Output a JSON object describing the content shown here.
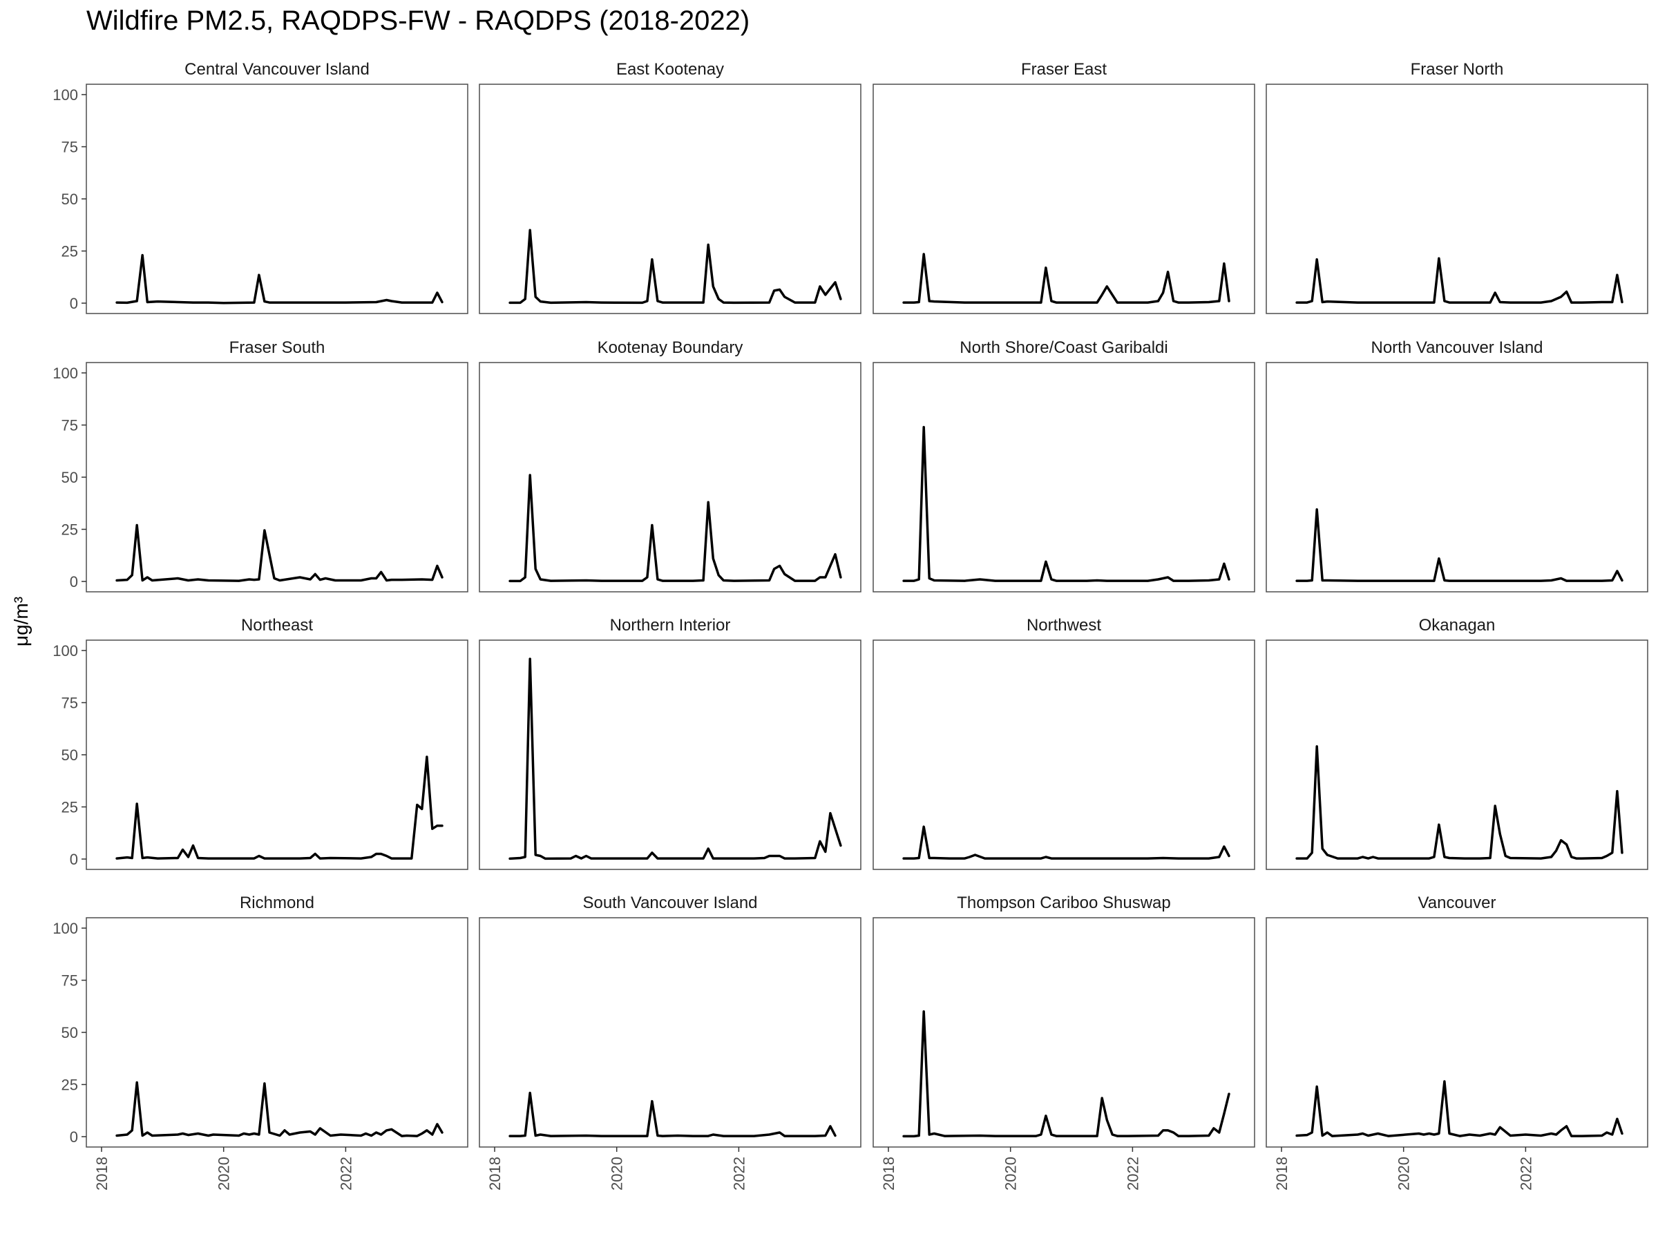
{
  "title": "Wildfire PM2.5, RAQDPS-FW - RAQDPS (2018-2022)",
  "chart_data": {
    "type": "line",
    "facet_layout": "4x4",
    "ylabel": "μg/m³",
    "xlabel": "",
    "ylim": [
      0,
      100
    ],
    "yticks": [
      0,
      25,
      50,
      75,
      100
    ],
    "xlim": [
      2018.0,
      2023.75
    ],
    "xticks": [
      2018,
      2020,
      2022
    ],
    "xtick_labels": [
      "2018",
      "2020",
      "2022"
    ],
    "line_color": "#000000",
    "grid": false,
    "panels": [
      {
        "name": "Central Vancouver Island",
        "x": [
          2018.25,
          2018.42,
          2018.58,
          2018.67,
          2018.75,
          2018.92,
          2019.5,
          2019.75,
          2020.0,
          2020.5,
          2020.58,
          2020.67,
          2020.75,
          2021.0,
          2021.5,
          2021.75,
          2022.0,
          2022.5,
          2022.67,
          2022.75,
          2022.92,
          2023.25,
          2023.42,
          2023.5,
          2023.58
        ],
        "y": [
          0.3,
          0.2,
          1,
          23,
          0.5,
          0.8,
          0.3,
          0.3,
          0.1,
          0.3,
          13.5,
          0.8,
          0.3,
          0.3,
          0.3,
          0.3,
          0.3,
          0.5,
          1.5,
          1,
          0.3,
          0.3,
          0.3,
          5,
          0.5
        ]
      },
      {
        "name": "East Kootenay",
        "x": [
          2018.25,
          2018.42,
          2018.5,
          2018.58,
          2018.67,
          2018.75,
          2018.92,
          2019.5,
          2019.75,
          2020.42,
          2020.5,
          2020.58,
          2020.67,
          2020.75,
          2021.0,
          2021.25,
          2021.42,
          2021.5,
          2021.58,
          2021.67,
          2021.75,
          2021.92,
          2022.5,
          2022.58,
          2022.67,
          2022.75,
          2022.92,
          2023.25,
          2023.33,
          2023.42,
          2023.58,
          2023.67
        ],
        "y": [
          0.2,
          0.2,
          2,
          35,
          3,
          0.8,
          0.2,
          0.5,
          0.3,
          0.2,
          1,
          21,
          1,
          0.3,
          0.3,
          0.3,
          0.3,
          28,
          8,
          2,
          0.3,
          0.2,
          0.3,
          6,
          6.5,
          3,
          0.3,
          0.3,
          8,
          4,
          10,
          2
        ]
      },
      {
        "name": "Fraser East",
        "x": [
          2018.25,
          2018.42,
          2018.5,
          2018.58,
          2018.67,
          2018.75,
          2019.25,
          2019.5,
          2019.75,
          2020.5,
          2020.58,
          2020.67,
          2020.75,
          2021.0,
          2021.25,
          2021.42,
          2021.5,
          2021.58,
          2021.75,
          2022.25,
          2022.42,
          2022.5,
          2022.58,
          2022.67,
          2022.75,
          2022.92,
          2023.25,
          2023.42,
          2023.5,
          2023.58
        ],
        "y": [
          0.3,
          0.3,
          0.5,
          23.5,
          1,
          0.8,
          0.3,
          0.3,
          0.3,
          0.3,
          17,
          1,
          0.3,
          0.3,
          0.3,
          0.3,
          4,
          8,
          0.3,
          0.3,
          1,
          5,
          15,
          1,
          0.3,
          0.3,
          0.5,
          1,
          19,
          1
        ]
      },
      {
        "name": "Fraser North",
        "x": [
          2018.25,
          2018.42,
          2018.5,
          2018.58,
          2018.67,
          2018.75,
          2019.25,
          2019.5,
          2019.75,
          2020.5,
          2020.58,
          2020.67,
          2020.75,
          2021.0,
          2021.25,
          2021.42,
          2021.5,
          2021.58,
          2021.75,
          2022.25,
          2022.42,
          2022.58,
          2022.67,
          2022.75,
          2022.92,
          2023.25,
          2023.42,
          2023.5,
          2023.58
        ],
        "y": [
          0.3,
          0.3,
          1,
          21,
          0.5,
          0.8,
          0.3,
          0.3,
          0.3,
          0.3,
          21.5,
          1,
          0.3,
          0.3,
          0.3,
          0.3,
          5,
          0.5,
          0.3,
          0.3,
          1,
          3,
          5.5,
          0.3,
          0.3,
          0.5,
          0.5,
          13.5,
          0.5
        ]
      },
      {
        "name": "Fraser South",
        "x": [
          2018.25,
          2018.42,
          2018.5,
          2018.58,
          2018.67,
          2018.75,
          2018.83,
          2019.25,
          2019.42,
          2019.58,
          2019.75,
          2020.25,
          2020.42,
          2020.5,
          2020.58,
          2020.67,
          2020.83,
          2020.92,
          2021.25,
          2021.42,
          2021.5,
          2021.58,
          2021.67,
          2021.83,
          2022.25,
          2022.42,
          2022.5,
          2022.58,
          2022.67,
          2022.75,
          2022.92,
          2023.25,
          2023.42,
          2023.5,
          2023.58
        ],
        "y": [
          0.5,
          0.8,
          3,
          27,
          0.5,
          2,
          0.5,
          1.5,
          0.5,
          1,
          0.5,
          0.3,
          1,
          0.8,
          1,
          24.5,
          1.5,
          0.5,
          2,
          1,
          3.5,
          0.8,
          1.5,
          0.5,
          0.5,
          1.5,
          1.5,
          4.5,
          0.5,
          0.8,
          0.8,
          1,
          0.8,
          7.5,
          2
        ]
      },
      {
        "name": "Kootenay Boundary",
        "x": [
          2018.25,
          2018.42,
          2018.5,
          2018.58,
          2018.67,
          2018.75,
          2018.92,
          2019.5,
          2019.75,
          2020.42,
          2020.5,
          2020.58,
          2020.67,
          2020.75,
          2021.0,
          2021.25,
          2021.42,
          2021.5,
          2021.58,
          2021.67,
          2021.75,
          2021.92,
          2022.5,
          2022.58,
          2022.67,
          2022.75,
          2022.92,
          2023.25,
          2023.33,
          2023.42,
          2023.58,
          2023.67
        ],
        "y": [
          0.2,
          0.2,
          2,
          51,
          6,
          1,
          0.3,
          0.5,
          0.3,
          0.3,
          2,
          27,
          1,
          0.3,
          0.3,
          0.3,
          0.5,
          38,
          11,
          3,
          0.5,
          0.3,
          0.5,
          6,
          7.5,
          3.5,
          0.3,
          0.3,
          2,
          2,
          13,
          2
        ]
      },
      {
        "name": "North Shore/Coast Garibaldi",
        "x": [
          2018.25,
          2018.42,
          2018.5,
          2018.58,
          2018.67,
          2018.75,
          2019.25,
          2019.5,
          2019.75,
          2020.5,
          2020.58,
          2020.67,
          2020.75,
          2021.0,
          2021.25,
          2021.42,
          2021.58,
          2021.75,
          2022.25,
          2022.42,
          2022.58,
          2022.67,
          2022.75,
          2022.92,
          2023.25,
          2023.42,
          2023.5,
          2023.58
        ],
        "y": [
          0.3,
          0.3,
          1,
          74,
          1.5,
          0.5,
          0.3,
          1,
          0.3,
          0.3,
          9.5,
          1,
          0.3,
          0.3,
          0.3,
          0.5,
          0.3,
          0.3,
          0.3,
          1,
          2,
          0.3,
          0.3,
          0.3,
          0.5,
          1,
          8.5,
          1
        ]
      },
      {
        "name": "North Vancouver Island",
        "x": [
          2018.25,
          2018.42,
          2018.5,
          2018.58,
          2018.67,
          2018.75,
          2019.25,
          2019.5,
          2019.75,
          2020.5,
          2020.58,
          2020.67,
          2020.75,
          2021.0,
          2021.5,
          2021.75,
          2022.0,
          2022.25,
          2022.42,
          2022.58,
          2022.67,
          2022.75,
          2022.92,
          2023.25,
          2023.42,
          2023.5,
          2023.58
        ],
        "y": [
          0.3,
          0.3,
          0.5,
          34.5,
          0.5,
          0.5,
          0.3,
          0.3,
          0.3,
          0.3,
          11,
          0.5,
          0.3,
          0.3,
          0.3,
          0.3,
          0.3,
          0.3,
          0.5,
          1.5,
          0.3,
          0.3,
          0.3,
          0.3,
          0.5,
          5,
          0.5
        ]
      },
      {
        "name": "Northeast",
        "x": [
          2018.25,
          2018.42,
          2018.5,
          2018.58,
          2018.67,
          2018.75,
          2018.92,
          2019.25,
          2019.33,
          2019.42,
          2019.5,
          2019.58,
          2019.75,
          2020.25,
          2020.5,
          2020.58,
          2020.67,
          2020.75,
          2021.0,
          2021.25,
          2021.42,
          2021.5,
          2021.58,
          2021.75,
          2022.25,
          2022.42,
          2022.5,
          2022.58,
          2022.67,
          2022.75,
          2022.92,
          2023.0,
          2023.08,
          2023.17,
          2023.25,
          2023.33,
          2023.42,
          2023.5,
          2023.58
        ],
        "y": [
          0.3,
          0.8,
          0.5,
          26.5,
          0.5,
          0.8,
          0.3,
          0.5,
          4.5,
          1,
          6.5,
          0.5,
          0.3,
          0.3,
          0.3,
          1.5,
          0.3,
          0.3,
          0.3,
          0.3,
          0.5,
          2.5,
          0.3,
          0.5,
          0.3,
          1,
          2.5,
          2.5,
          1.5,
          0.3,
          0.3,
          0.3,
          0.3,
          26,
          24,
          49,
          14.5,
          16,
          16
        ]
      },
      {
        "name": "Northern Interior",
        "x": [
          2018.25,
          2018.42,
          2018.5,
          2018.58,
          2018.67,
          2018.75,
          2018.83,
          2019.25,
          2019.33,
          2019.42,
          2019.5,
          2019.58,
          2020.5,
          2020.58,
          2020.67,
          2020.75,
          2021.25,
          2021.42,
          2021.5,
          2021.58,
          2021.75,
          2022.25,
          2022.42,
          2022.5,
          2022.58,
          2022.67,
          2022.75,
          2022.92,
          2023.25,
          2023.33,
          2023.42,
          2023.5,
          2023.67
        ],
        "y": [
          0.2,
          0.5,
          1,
          96,
          2,
          1.5,
          0.2,
          0.3,
          1.5,
          0.3,
          1.5,
          0.3,
          0.3,
          3,
          0.3,
          0.3,
          0.3,
          0.3,
          5,
          0.3,
          0.3,
          0.3,
          0.5,
          1.5,
          1.5,
          1.5,
          0.3,
          0.3,
          0.5,
          8.5,
          3.5,
          22,
          6.5
        ]
      },
      {
        "name": "Northwest",
        "x": [
          2018.25,
          2018.42,
          2018.5,
          2018.58,
          2018.67,
          2018.75,
          2019.0,
          2019.25,
          2019.33,
          2019.42,
          2019.58,
          2020.0,
          2020.5,
          2020.58,
          2020.67,
          2020.75,
          2021.0,
          2021.5,
          2021.75,
          2022.25,
          2022.5,
          2022.75,
          2022.92,
          2023.25,
          2023.42,
          2023.5,
          2023.58
        ],
        "y": [
          0.3,
          0.3,
          0.5,
          15.5,
          0.5,
          0.5,
          0.3,
          0.3,
          1,
          2,
          0.3,
          0.3,
          0.3,
          1,
          0.3,
          0.3,
          0.3,
          0.3,
          0.3,
          0.3,
          0.5,
          0.3,
          0.3,
          0.3,
          1,
          6,
          1.5
        ]
      },
      {
        "name": "Okanagan",
        "x": [
          2018.25,
          2018.42,
          2018.5,
          2018.58,
          2018.67,
          2018.75,
          2018.92,
          2019.25,
          2019.33,
          2019.42,
          2019.5,
          2019.58,
          2020.0,
          2020.42,
          2020.5,
          2020.58,
          2020.67,
          2020.75,
          2021.0,
          2021.25,
          2021.42,
          2021.5,
          2021.58,
          2021.67,
          2021.75,
          2022.25,
          2022.42,
          2022.5,
          2022.58,
          2022.67,
          2022.75,
          2022.83,
          2022.92,
          2023.25,
          2023.33,
          2023.42,
          2023.5,
          2023.58
        ],
        "y": [
          0.3,
          0.3,
          3,
          54,
          5,
          2,
          0.3,
          0.3,
          1,
          0.3,
          1,
          0.3,
          0.3,
          0.3,
          1,
          16.5,
          1,
          0.5,
          0.3,
          0.3,
          0.5,
          25.5,
          12,
          1.5,
          0.5,
          0.3,
          1,
          4,
          9,
          7,
          1,
          0.3,
          0.3,
          0.5,
          1.5,
          3,
          32.5,
          3
        ]
      },
      {
        "name": "Richmond",
        "x": [
          2018.25,
          2018.42,
          2018.5,
          2018.58,
          2018.67,
          2018.75,
          2018.83,
          2019.25,
          2019.33,
          2019.42,
          2019.58,
          2019.75,
          2019.83,
          2020.25,
          2020.33,
          2020.42,
          2020.5,
          2020.58,
          2020.67,
          2020.75,
          2020.92,
          2021.0,
          2021.08,
          2021.25,
          2021.42,
          2021.5,
          2021.58,
          2021.75,
          2021.92,
          2022.25,
          2022.33,
          2022.42,
          2022.5,
          2022.58,
          2022.67,
          2022.75,
          2022.92,
          2023.0,
          2023.17,
          2023.25,
          2023.33,
          2023.42,
          2023.5,
          2023.58
        ],
        "y": [
          0.5,
          1,
          3,
          26,
          0.5,
          2,
          0.5,
          1,
          1.5,
          0.8,
          1.5,
          0.5,
          1,
          0.5,
          1.5,
          1,
          1.5,
          1,
          25.5,
          2,
          0.5,
          3,
          1,
          2,
          2.5,
          1,
          4,
          0.5,
          1,
          0.5,
          1.5,
          0.5,
          2,
          1,
          3,
          3.5,
          0.3,
          0.5,
          0.3,
          1.5,
          3,
          1,
          6,
          2
        ]
      },
      {
        "name": "South Vancouver Island",
        "x": [
          2018.25,
          2018.42,
          2018.5,
          2018.58,
          2018.67,
          2018.75,
          2018.92,
          2019.5,
          2019.75,
          2020.5,
          2020.58,
          2020.67,
          2020.75,
          2021.0,
          2021.25,
          2021.5,
          2021.58,
          2021.75,
          2022.25,
          2022.5,
          2022.67,
          2022.75,
          2022.92,
          2023.25,
          2023.42,
          2023.5,
          2023.58
        ],
        "y": [
          0.3,
          0.3,
          0.5,
          21,
          0.5,
          1,
          0.3,
          0.5,
          0.3,
          0.3,
          17,
          0.5,
          0.3,
          0.5,
          0.3,
          0.3,
          1,
          0.3,
          0.3,
          1,
          2,
          0.3,
          0.3,
          0.3,
          0.5,
          5,
          0.5
        ]
      },
      {
        "name": "Thompson Cariboo Shuswap",
        "x": [
          2018.25,
          2018.42,
          2018.5,
          2018.58,
          2018.67,
          2018.75,
          2018.92,
          2019.5,
          2019.75,
          2020.42,
          2020.5,
          2020.58,
          2020.67,
          2020.75,
          2021.0,
          2021.25,
          2021.42,
          2021.5,
          2021.58,
          2021.67,
          2021.75,
          2021.92,
          2022.42,
          2022.5,
          2022.58,
          2022.67,
          2022.75,
          2022.92,
          2023.25,
          2023.33,
          2023.42,
          2023.5,
          2023.58
        ],
        "y": [
          0.2,
          0.2,
          0.5,
          60,
          1,
          1.5,
          0.3,
          0.5,
          0.3,
          0.3,
          1,
          10,
          1,
          0.3,
          0.3,
          0.3,
          0.3,
          18.5,
          8,
          1,
          0.3,
          0.3,
          0.5,
          3,
          3,
          2,
          0.3,
          0.3,
          0.5,
          4,
          2,
          11,
          20.5
        ]
      },
      {
        "name": "Vancouver",
        "x": [
          2018.25,
          2018.42,
          2018.5,
          2018.58,
          2018.67,
          2018.75,
          2018.83,
          2019.25,
          2019.33,
          2019.42,
          2019.58,
          2019.75,
          2020.25,
          2020.33,
          2020.42,
          2020.5,
          2020.58,
          2020.67,
          2020.75,
          2020.92,
          2021.08,
          2021.25,
          2021.42,
          2021.5,
          2021.58,
          2021.75,
          2022.0,
          2022.25,
          2022.42,
          2022.5,
          2022.58,
          2022.67,
          2022.75,
          2022.92,
          2023.25,
          2023.33,
          2023.42,
          2023.5,
          2023.58
        ],
        "y": [
          0.5,
          0.8,
          2,
          24,
          0.5,
          2,
          0.3,
          1,
          1.5,
          0.5,
          1.5,
          0.3,
          1.5,
          1,
          1.5,
          1,
          1.5,
          26.5,
          1.5,
          0.3,
          1,
          0.5,
          1.5,
          1,
          4.5,
          0.5,
          1,
          0.5,
          1.5,
          1,
          3,
          5,
          0.3,
          0.3,
          0.5,
          2,
          1,
          8.5,
          1.5
        ]
      }
    ]
  }
}
